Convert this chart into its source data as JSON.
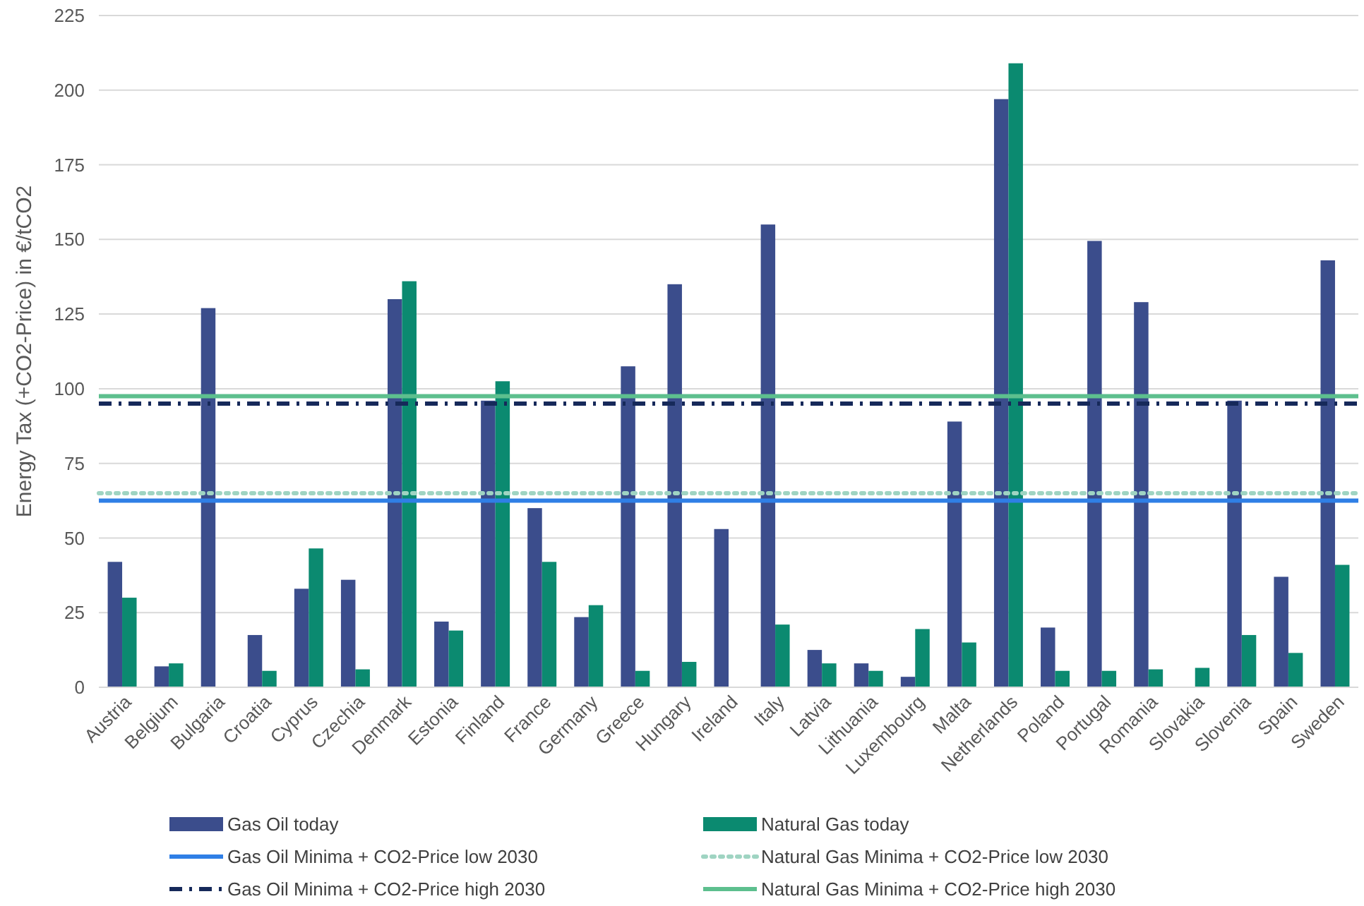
{
  "chart_data": {
    "type": "bar",
    "ylabel": "Energy Tax (+CO2-Price) in €/tCO2",
    "categories": [
      "Austria",
      "Belgium",
      "Bulgaria",
      "Croatia",
      "Cyprus",
      "Czechia",
      "Denmark",
      "Estonia",
      "Finland",
      "France",
      "Germany",
      "Greece",
      "Hungary",
      "Ireland",
      "Italy",
      "Latvia",
      "Lithuania",
      "Luxembourg",
      "Malta",
      "Netherlands",
      "Poland",
      "Portugal",
      "Romania",
      "Slovakia",
      "Slovenia",
      "Spain",
      "Sweden"
    ],
    "series": [
      {
        "name": "Gas Oil today",
        "color": "#3b4d8c",
        "values": [
          42,
          7,
          127,
          17.5,
          33,
          36,
          130,
          22,
          96,
          60,
          23.5,
          107.5,
          135,
          53,
          155,
          12.5,
          8,
          3.5,
          89,
          197,
          20,
          149.5,
          129,
          null,
          96,
          37,
          143
        ]
      },
      {
        "name": "Natural Gas today",
        "color": "#0b8a70",
        "values": [
          30,
          8,
          null,
          5.5,
          46.5,
          6,
          136,
          19,
          102.5,
          42,
          27.5,
          5.5,
          8.5,
          null,
          21,
          8,
          5.5,
          19.5,
          15,
          209,
          5.5,
          5.5,
          6,
          6.5,
          17.5,
          11.5,
          41
        ]
      }
    ],
    "ylim": [
      0,
      225
    ],
    "yticks": [
      0,
      25,
      50,
      75,
      100,
      125,
      150,
      175,
      200,
      225
    ],
    "grid": "y",
    "legend": "bottom",
    "ref_lines": [
      {
        "axis": "y",
        "value": 62.5,
        "label": "Gas Oil Minima + CO2-Price low  2030",
        "color": "#2f7fe6",
        "line_style": "solid"
      },
      {
        "axis": "y",
        "value": 65,
        "label": "Natural Gas Minima + CO2-Price low  2030",
        "color": "#9fd4c2",
        "line_style": "dotted"
      },
      {
        "axis": "y",
        "value": 95,
        "label": "Gas Oil Minima + CO2-Price high  2030",
        "color": "#16295a",
        "line_style": "dashdot"
      },
      {
        "axis": "y",
        "value": 97.5,
        "label": "Natural Gas Minima + CO2-Price high 2030",
        "color": "#5dbf8e",
        "line_style": "solid"
      }
    ]
  }
}
